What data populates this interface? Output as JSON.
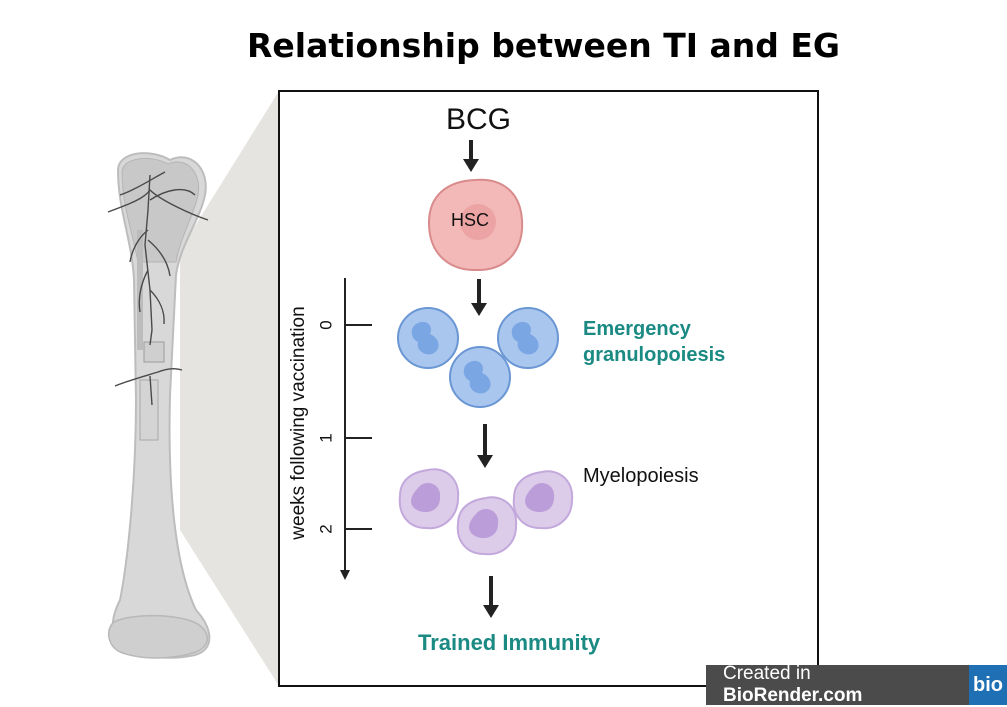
{
  "title": "Relationship between TI and EG",
  "stimulus": "BCG",
  "stem_cell": "HSC",
  "stage_labels": {
    "emergency_line1": "Emergency",
    "emergency_line2": "granulopoiesis",
    "myelopoiesis": "Myelopoiesis",
    "outcome": "Trained Immunity"
  },
  "timeline": {
    "axis_label": "weeks following vaccination",
    "ticks": [
      "0",
      "1",
      "2"
    ]
  },
  "watermark": {
    "prefix": "Created in ",
    "brand": "BioRender.com",
    "logo": "bio"
  },
  "colors": {
    "teal_text": "#1a8a83",
    "hsc_fill": "#f3b8b8",
    "neutrophil_fill": "#a9c6ee",
    "myeloid_fill": "#dccbe9",
    "bone_fill": "#d9d9d9"
  }
}
